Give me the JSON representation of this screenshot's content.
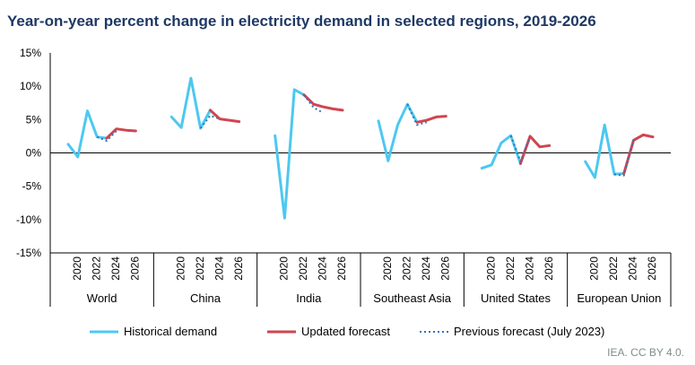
{
  "chart_data": {
    "type": "line",
    "title": "Year-on-year percent change in electricity demand in selected regions, 2019-2026",
    "ylim": [
      -15,
      15
    ],
    "yticks": [
      15,
      10,
      5,
      0,
      -5,
      -10,
      -15
    ],
    "y_tick_labels": [
      "15%",
      "10%",
      "5%",
      "0%",
      "-5%",
      "-10%",
      "-15%"
    ],
    "x_tick_labels": [
      "2020",
      "2022",
      "2024",
      "2026"
    ],
    "x_tick_years": [
      2020,
      2022,
      2024,
      2026
    ],
    "years": [
      2019,
      2020,
      2021,
      2022,
      2023,
      2024,
      2025,
      2026
    ],
    "groups": [
      "World",
      "China",
      "India",
      "Southeast Asia",
      "United States",
      "European Union"
    ],
    "series": [
      {
        "name": "Historical demand",
        "color": "#4dc8f0",
        "style": "solid",
        "data": {
          "World": [
            1.3,
            -0.6,
            6.3,
            2.4,
            2.2,
            null,
            null,
            null
          ],
          "China": [
            5.4,
            3.8,
            11.2,
            3.7,
            6.4,
            null,
            null,
            null
          ],
          "India": [
            2.6,
            -9.8,
            9.5,
            8.7,
            null,
            null,
            null,
            null
          ],
          "Southeast Asia": [
            4.8,
            -1.2,
            4.2,
            7.3,
            4.6,
            null,
            null,
            null
          ],
          "United States": [
            -2.3,
            -1.8,
            1.5,
            2.6,
            -1.6,
            null,
            null,
            null
          ],
          "European Union": [
            -1.3,
            -3.7,
            4.2,
            -3.2,
            -3.1,
            null,
            null,
            null
          ]
        }
      },
      {
        "name": "Updated forecast",
        "color": "#d0454f",
        "style": "solid",
        "data": {
          "World": [
            null,
            null,
            null,
            null,
            2.2,
            3.6,
            3.4,
            3.3
          ],
          "China": [
            null,
            null,
            null,
            null,
            6.4,
            5.1,
            4.9,
            4.7
          ],
          "India": [
            null,
            null,
            null,
            8.7,
            7.3,
            6.9,
            6.6,
            6.4
          ],
          "Southeast Asia": [
            null,
            null,
            null,
            null,
            4.6,
            4.9,
            5.4,
            5.5
          ],
          "United States": [
            null,
            null,
            null,
            null,
            -1.6,
            2.5,
            0.9,
            1.1
          ],
          "European Union": [
            null,
            null,
            null,
            null,
            -3.1,
            1.9,
            2.7,
            2.4
          ]
        }
      },
      {
        "name": "Previous forecast (July 2023)",
        "color": "#2e75b6",
        "style": "dotted",
        "data": {
          "World": [
            null,
            null,
            null,
            2.4,
            1.8,
            3.3,
            null,
            null
          ],
          "China": [
            null,
            null,
            null,
            3.7,
            5.6,
            5.1,
            null,
            null
          ],
          "India": [
            null,
            null,
            null,
            8.7,
            6.8,
            6.0,
            null,
            null
          ],
          "Southeast Asia": [
            null,
            null,
            null,
            7.3,
            4.2,
            4.6,
            null,
            null
          ],
          "United States": [
            null,
            null,
            null,
            2.6,
            -1.3,
            2.4,
            null,
            null
          ],
          "European Union": [
            null,
            null,
            null,
            -3.2,
            -3.4,
            2.0,
            null,
            null
          ]
        }
      }
    ],
    "legend": {
      "position": "bottom",
      "labels": [
        "Historical demand",
        "Updated forecast",
        "Previous forecast (July 2023)"
      ]
    },
    "grid": false
  },
  "colors": {
    "title": "#1f3864",
    "axis": "#000000"
  },
  "credit": "IEA. CC BY 4.0."
}
